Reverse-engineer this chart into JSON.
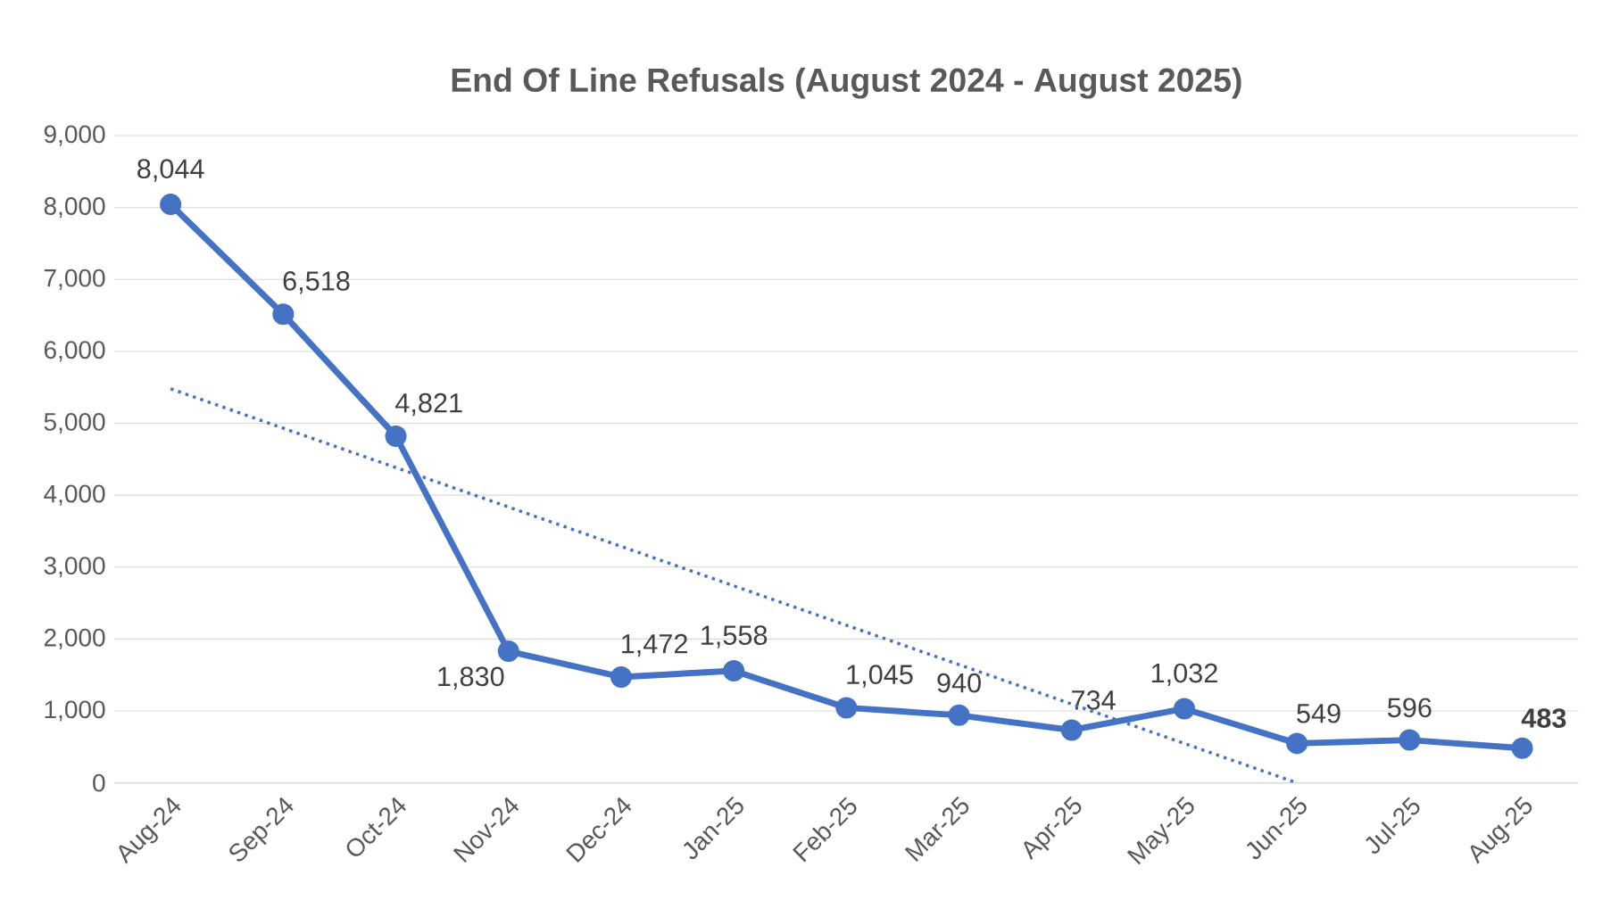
{
  "chart_data": {
    "type": "line",
    "title": "End Of Line Refusals (August 2024 - August 2025)",
    "categories": [
      "Aug-24",
      "Sep-24",
      "Oct-24",
      "Nov-24",
      "Dec-24",
      "Jan-25",
      "Feb-25",
      "Mar-25",
      "Apr-25",
      "May-25",
      "Jun-25",
      "Jul-25",
      "Aug-25"
    ],
    "series": [
      {
        "color": "#4472c4",
        "values": [
          8044,
          6518,
          4821,
          1830,
          1472,
          1558,
          1045,
          940,
          734,
          1032,
          549,
          596,
          483
        ],
        "value_labels": [
          "8,044",
          "6,518",
          "4,821",
          "1,830",
          "1,472",
          "1,558",
          "1,045",
          "940",
          "734",
          "1,032",
          "549",
          "596",
          "**483**"
        ],
        "marker": "circle",
        "line_style": "solid"
      },
      {
        "type": "line",
        "color": "#4472c4",
        "x": [
          "Aug-24",
          "Jun-25"
        ],
        "values": [
          5480,
          0
        ],
        "marker": "none",
        "line_style": "dotted"
      }
    ],
    "ylim": [
      0,
      9000
    ],
    "yticks": [
      0,
      {
        "value": 1000,
        "label": "1,000"
      },
      {
        "value": 2000,
        "label": "2,000"
      },
      {
        "value": 3000,
        "label": "3,000"
      },
      {
        "value": 4000,
        "label": "4,000"
      },
      {
        "value": 5000,
        "label": "5,000"
      },
      {
        "value": 6000,
        "label": "6,000"
      },
      {
        "value": 7000,
        "label": "7,000"
      },
      {
        "value": 8000,
        "label": "8,000"
      },
      {
        "value": 9000,
        "label": "9,000"
      }
    ],
    "grid": "y",
    "legend": false
  }
}
